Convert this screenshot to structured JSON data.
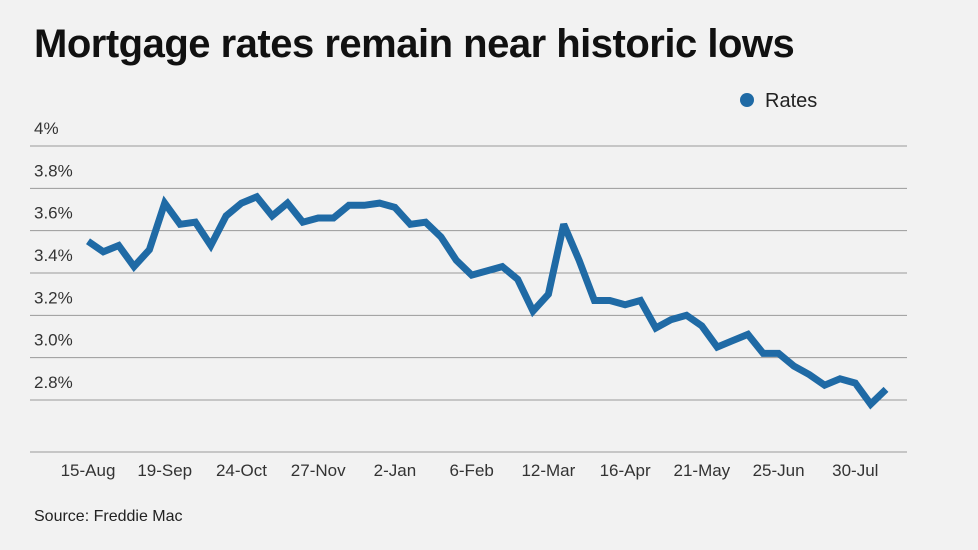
{
  "title": "Mortgage rates remain near historic lows",
  "source": "Source: Freddie Mac",
  "chart_data": {
    "type": "line",
    "title": "Mortgage rates remain near historic lows",
    "xlabel": "",
    "ylabel": "",
    "ylim": [
      2.7,
      4.0
    ],
    "yticks": [
      4.0,
      3.8,
      3.6,
      3.4,
      3.2,
      3.0,
      2.8
    ],
    "ytick_labels": [
      "4%",
      "3.8%",
      "3.6%",
      "3.4%",
      "3.2%",
      "3.0%",
      "2.8%"
    ],
    "xtick_labels": [
      "15-Aug",
      "19-Sep",
      "24-Oct",
      "27-Nov",
      "2-Jan",
      "6-Feb",
      "12-Mar",
      "16-Apr",
      "21-May",
      "25-Jun",
      "30-Jul"
    ],
    "xtick_positions": [
      0,
      5,
      10,
      15,
      20,
      25,
      30,
      35,
      40,
      45,
      50
    ],
    "legend": "top-right",
    "grid": true,
    "color": "#1f6aa5",
    "series": [
      {
        "name": "Rates",
        "values": [
          3.55,
          3.5,
          3.53,
          3.43,
          3.51,
          3.73,
          3.63,
          3.64,
          3.53,
          3.67,
          3.73,
          3.76,
          3.67,
          3.73,
          3.64,
          3.66,
          3.66,
          3.72,
          3.72,
          3.73,
          3.71,
          3.63,
          3.64,
          3.57,
          3.46,
          3.39,
          3.41,
          3.43,
          3.37,
          3.22,
          3.3,
          3.63,
          3.46,
          3.27,
          3.27,
          3.25,
          3.27,
          3.14,
          3.18,
          3.2,
          3.15,
          3.05,
          3.08,
          3.11,
          3.02,
          3.02,
          2.96,
          2.92,
          2.87,
          2.9,
          2.88,
          2.78,
          2.85
        ]
      }
    ]
  }
}
